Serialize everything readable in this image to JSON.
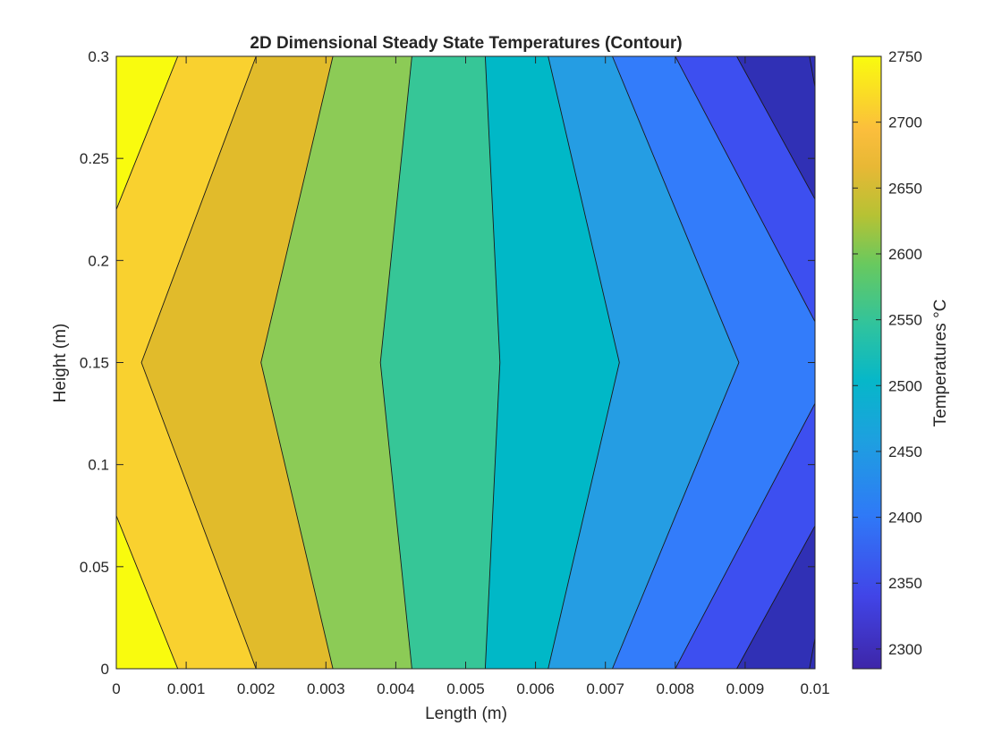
{
  "chart_data": {
    "type": "contour",
    "title": "2D Dimensional Steady State Temperatures (Contour)",
    "xlabel": "Length (m)",
    "ylabel": "Height (m)",
    "xlim": [
      0,
      0.01
    ],
    "ylim": [
      0,
      0.3
    ],
    "x_ticks": [
      "0",
      "0.001",
      "0.002",
      "0.003",
      "0.004",
      "0.005",
      "0.006",
      "0.007",
      "0.008",
      "0.009",
      "0.01"
    ],
    "y_ticks": [
      "0",
      "0.05",
      "0.1",
      "0.15",
      "0.2",
      "0.25",
      "0.3"
    ],
    "grid": false,
    "colormap": "parula",
    "colorbar": {
      "label": "Temperatures °C",
      "range": [
        2285,
        2750
      ],
      "ticks": [
        "2300",
        "2350",
        "2400",
        "2450",
        "2500",
        "2550",
        "2600",
        "2650",
        "2700",
        "2750"
      ]
    },
    "level_colors": [
      "#f9fb0e",
      "#f9d12f",
      "#e1bb2b",
      "#8ccb56",
      "#36c697",
      "#00b8c7",
      "#259de3",
      "#337cfa",
      "#3d4ff0",
      "#3030b5"
    ],
    "contour_lines": [
      {
        "level": 2700,
        "points": [
          [
            0.00088,
            0
          ],
          [
            0,
            0.075
          ]
        ]
      },
      {
        "level": 2700,
        "points": [
          [
            0.00088,
            0.3
          ],
          [
            0,
            0.225
          ]
        ]
      },
      {
        "level": 2650,
        "points": [
          [
            0.002,
            0
          ],
          [
            0.00036,
            0.15
          ],
          [
            0.002,
            0.3
          ]
        ]
      },
      {
        "level": 2600,
        "points": [
          [
            0.0031,
            0
          ],
          [
            0.00207,
            0.15
          ],
          [
            0.0031,
            0.3
          ]
        ]
      },
      {
        "level": 2550,
        "points": [
          [
            0.00423,
            0
          ],
          [
            0.00378,
            0.15
          ],
          [
            0.00423,
            0.3
          ]
        ]
      },
      {
        "level": 2500,
        "points": [
          [
            0.00528,
            0
          ],
          [
            0.00549,
            0.15
          ],
          [
            0.00528,
            0.3
          ]
        ]
      },
      {
        "level": 2450,
        "points": [
          [
            0.00618,
            0
          ],
          [
            0.0072,
            0.15
          ],
          [
            0.00618,
            0.3
          ]
        ]
      },
      {
        "level": 2400,
        "points": [
          [
            0.0071,
            0
          ],
          [
            0.00891,
            0.15
          ],
          [
            0.0071,
            0.3
          ]
        ]
      },
      {
        "level": 2350,
        "points": [
          [
            0.008,
            0
          ],
          [
            0.01,
            0.13
          ]
        ]
      },
      {
        "level": 2350,
        "points": [
          [
            0.008,
            0.3
          ],
          [
            0.01,
            0.17
          ]
        ]
      },
      {
        "level": 2300,
        "points": [
          [
            0.00888,
            0
          ],
          [
            0.01,
            0.07
          ]
        ]
      },
      {
        "level": 2300,
        "points": [
          [
            0.00888,
            0.3
          ],
          [
            0.01,
            0.23
          ]
        ]
      },
      {
        "level": 2285,
        "points": [
          [
            0.00992,
            0
          ],
          [
            0.01,
            0.015
          ]
        ]
      },
      {
        "level": 2285,
        "points": [
          [
            0.00992,
            0.3
          ],
          [
            0.01,
            0.285
          ]
        ]
      }
    ],
    "regions": [
      {
        "range": [
          2700,
          2750
        ],
        "points": [
          [
            0,
            0
          ],
          [
            0.00088,
            0
          ],
          [
            0,
            0.075
          ]
        ]
      },
      {
        "range": [
          2700,
          2750
        ],
        "points": [
          [
            0,
            0.3
          ],
          [
            0.00088,
            0.3
          ],
          [
            0,
            0.225
          ]
        ]
      },
      {
        "range": [
          2650,
          2700
        ],
        "points": [
          [
            0.00088,
            0
          ],
          [
            0.002,
            0
          ],
          [
            0.00036,
            0.15
          ],
          [
            0.002,
            0.3
          ],
          [
            0.00088,
            0.3
          ],
          [
            0,
            0.225
          ],
          [
            0,
            0.075
          ]
        ]
      },
      {
        "range": [
          2600,
          2650
        ],
        "points": [
          [
            0.002,
            0
          ],
          [
            0.0031,
            0
          ],
          [
            0.00207,
            0.15
          ],
          [
            0.0031,
            0.3
          ],
          [
            0.002,
            0.3
          ],
          [
            0.00036,
            0.15
          ]
        ]
      },
      {
        "range": [
          2550,
          2600
        ],
        "points": [
          [
            0.0031,
            0
          ],
          [
            0.00423,
            0
          ],
          [
            0.00378,
            0.15
          ],
          [
            0.00423,
            0.3
          ],
          [
            0.0031,
            0.3
          ],
          [
            0.00207,
            0.15
          ]
        ]
      },
      {
        "range": [
          2500,
          2550
        ],
        "points": [
          [
            0.00423,
            0
          ],
          [
            0.00528,
            0
          ],
          [
            0.00549,
            0.15
          ],
          [
            0.00528,
            0.3
          ],
          [
            0.00423,
            0.3
          ],
          [
            0.00378,
            0.15
          ]
        ]
      },
      {
        "range": [
          2450,
          2500
        ],
        "points": [
          [
            0.00528,
            0
          ],
          [
            0.00618,
            0
          ],
          [
            0.0072,
            0.15
          ],
          [
            0.00618,
            0.3
          ],
          [
            0.00528,
            0.3
          ],
          [
            0.00549,
            0.15
          ]
        ]
      },
      {
        "range": [
          2400,
          2450
        ],
        "points": [
          [
            0.00618,
            0
          ],
          [
            0.0071,
            0
          ],
          [
            0.00891,
            0.15
          ],
          [
            0.0071,
            0.3
          ],
          [
            0.00618,
            0.3
          ],
          [
            0.0072,
            0.15
          ]
        ]
      },
      {
        "range": [
          2350,
          2400
        ],
        "points": [
          [
            0.0071,
            0
          ],
          [
            0.008,
            0
          ],
          [
            0.01,
            0.13
          ],
          [
            0.01,
            0.17
          ],
          [
            0.008,
            0.3
          ],
          [
            0.0071,
            0.3
          ],
          [
            0.00891,
            0.15
          ]
        ]
      },
      {
        "range": [
          2300,
          2350
        ],
        "points": [
          [
            0.008,
            0
          ],
          [
            0.00888,
            0
          ],
          [
            0.01,
            0.07
          ],
          [
            0.01,
            0.13
          ]
        ]
      },
      {
        "range": [
          2300,
          2350
        ],
        "points": [
          [
            0.008,
            0.3
          ],
          [
            0.00888,
            0.3
          ],
          [
            0.01,
            0.23
          ],
          [
            0.01,
            0.17
          ]
        ]
      },
      {
        "range": [
          2285,
          2300
        ],
        "points": [
          [
            0.00888,
            0
          ],
          [
            0.00992,
            0
          ],
          [
            0.01,
            0.015
          ],
          [
            0.01,
            0.07
          ]
        ]
      },
      {
        "range": [
          2285,
          2300
        ],
        "points": [
          [
            0.00888,
            0.3
          ],
          [
            0.00992,
            0.3
          ],
          [
            0.01,
            0.285
          ],
          [
            0.01,
            0.23
          ]
        ]
      },
      {
        "range": [
          2270,
          2285
        ],
        "points": [
          [
            0.00992,
            0
          ],
          [
            0.01,
            0
          ],
          [
            0.01,
            0.015
          ]
        ]
      },
      {
        "range": [
          2270,
          2285
        ],
        "points": [
          [
            0.00992,
            0.3
          ],
          [
            0.01,
            0.3
          ],
          [
            0.01,
            0.285
          ]
        ]
      }
    ]
  }
}
